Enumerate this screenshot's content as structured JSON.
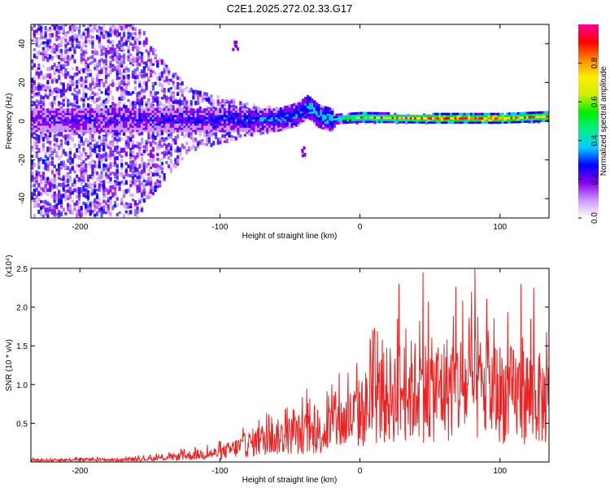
{
  "title": "C2E1.2025.272.02.33.G17",
  "chart_data": [
    {
      "type": "heatmap",
      "name": "spectrogram",
      "title": "C2E1.2025.272.02.33.G17",
      "xlabel": "Height of straight line (km)",
      "ylabel": "Frequency (Hz)",
      "xlim": [
        -235,
        135
      ],
      "ylim": [
        -50,
        50
      ],
      "xticks": [
        -200,
        -100,
        0,
        100
      ],
      "yticks": [
        -40,
        -20,
        0,
        20,
        40
      ],
      "colorbar": {
        "label": "Normalized spectral amplitude",
        "range": [
          0.0,
          1.0
        ],
        "ticks": [
          "0.0",
          "0.2",
          "0.4",
          "0.6",
          "0.8"
        ],
        "tick_values": [
          0.0,
          0.2,
          0.4,
          0.6,
          0.8
        ],
        "colors": [
          "#ffffff",
          "#cc99ff",
          "#8800ee",
          "#0000ff",
          "#00ccff",
          "#00ee88",
          "#00ee00",
          "#ccee00",
          "#ffee00",
          "#ff8800",
          "#ff0000",
          "#ff0099"
        ]
      },
      "band": {
        "center_hz": [
          [
            -235,
            1
          ],
          [
            -150,
            1
          ],
          [
            -100,
            1
          ],
          [
            -60,
            1
          ],
          [
            -45,
            4
          ],
          [
            -38,
            8
          ],
          [
            -30,
            3
          ],
          [
            -20,
            1
          ],
          [
            0,
            2
          ],
          [
            50,
            1.5
          ],
          [
            100,
            1.5
          ],
          [
            135,
            2.5
          ]
        ],
        "noise_extent_hz": [
          [
            -235,
            50
          ],
          [
            -200,
            50
          ],
          [
            -160,
            50
          ],
          [
            -140,
            30
          ],
          [
            -120,
            15
          ],
          [
            -100,
            12
          ],
          [
            -80,
            8
          ],
          [
            -60,
            6
          ],
          [
            -40,
            5
          ],
          [
            -20,
            3
          ],
          [
            0,
            2
          ],
          [
            135,
            2
          ]
        ],
        "intensity": [
          [
            -235,
            0.2
          ],
          [
            -150,
            0.22
          ],
          [
            -100,
            0.25
          ],
          [
            -60,
            0.3
          ],
          [
            -40,
            0.35
          ],
          [
            -20,
            0.4
          ],
          [
            0,
            0.6
          ],
          [
            50,
            0.75
          ],
          [
            100,
            0.75
          ],
          [
            135,
            0.7
          ]
        ]
      },
      "artifacts": [
        {
          "x_km": -40,
          "freq_hz": -15,
          "note": "purple blob"
        },
        {
          "x_km": -90,
          "freq_hz": 40,
          "note": "streak"
        }
      ]
    },
    {
      "type": "line",
      "name": "snr",
      "title": "",
      "xlabel": "Height of straight line (km)",
      "ylabel": "SNR (10 * v/v)",
      "yscale_label": "(x10⁴)",
      "multiplier": 10000,
      "xlim": [
        -235,
        135
      ],
      "ylim": [
        0,
        2.5
      ],
      "xticks": [
        -200,
        -100,
        0,
        100
      ],
      "yticks": [
        0.5,
        1.0,
        1.5,
        2.0,
        2.5
      ],
      "color": "#ee2222",
      "envelope": {
        "x": [
          -235,
          -200,
          -170,
          -150,
          -130,
          -110,
          -100,
          -90,
          -80,
          -70,
          -60,
          -50,
          -40,
          -30,
          -20,
          -10,
          0,
          10,
          20,
          30,
          40,
          50,
          60,
          70,
          80,
          90,
          100,
          110,
          120,
          130,
          135
        ],
        "y": [
          0.04,
          0.05,
          0.05,
          0.07,
          0.12,
          0.18,
          0.2,
          0.3,
          0.4,
          0.5,
          0.55,
          0.6,
          0.65,
          0.6,
          0.8,
          0.9,
          1.1,
          1.35,
          1.5,
          1.6,
          1.6,
          1.6,
          1.65,
          1.7,
          1.65,
          1.6,
          1.55,
          1.5,
          1.5,
          1.4,
          1.3
        ]
      },
      "peaks": [
        {
          "x": -38,
          "y": 0.95
        },
        {
          "x": -20,
          "y": 1.0
        },
        {
          "x": -15,
          "y": 1.15
        },
        {
          "x": 28,
          "y": 2.3
        },
        {
          "x": 45,
          "y": 2.45
        },
        {
          "x": 82,
          "y": 2.5
        },
        {
          "x": 115,
          "y": 2.3
        },
        {
          "x": 124,
          "y": 2.25
        }
      ]
    }
  ]
}
